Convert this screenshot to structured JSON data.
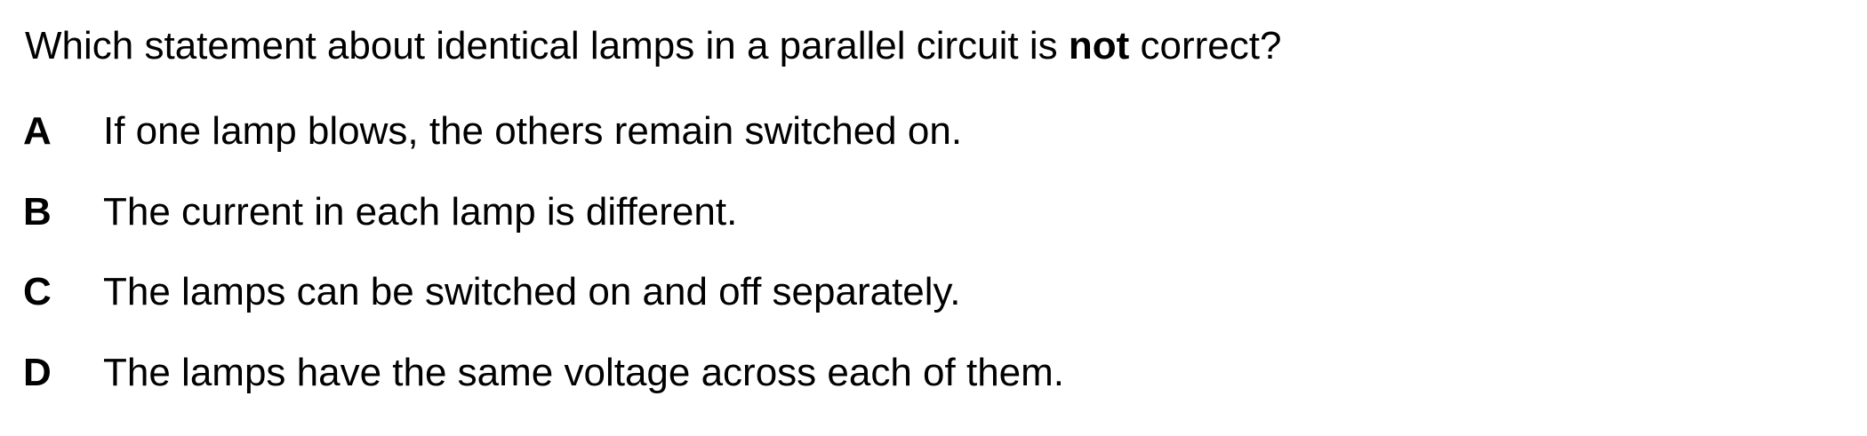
{
  "question": {
    "before": "Which statement about identical lamps in a parallel circuit is ",
    "emphasis": "not",
    "after": " correct?"
  },
  "options": [
    {
      "letter": "A",
      "text": "If one lamp blows, the others remain switched on."
    },
    {
      "letter": "B",
      "text": "The current in each lamp is different."
    },
    {
      "letter": "C",
      "text": "The lamps can be switched on and off separately."
    },
    {
      "letter": "D",
      "text": "The lamps have the same voltage across each of them."
    }
  ]
}
